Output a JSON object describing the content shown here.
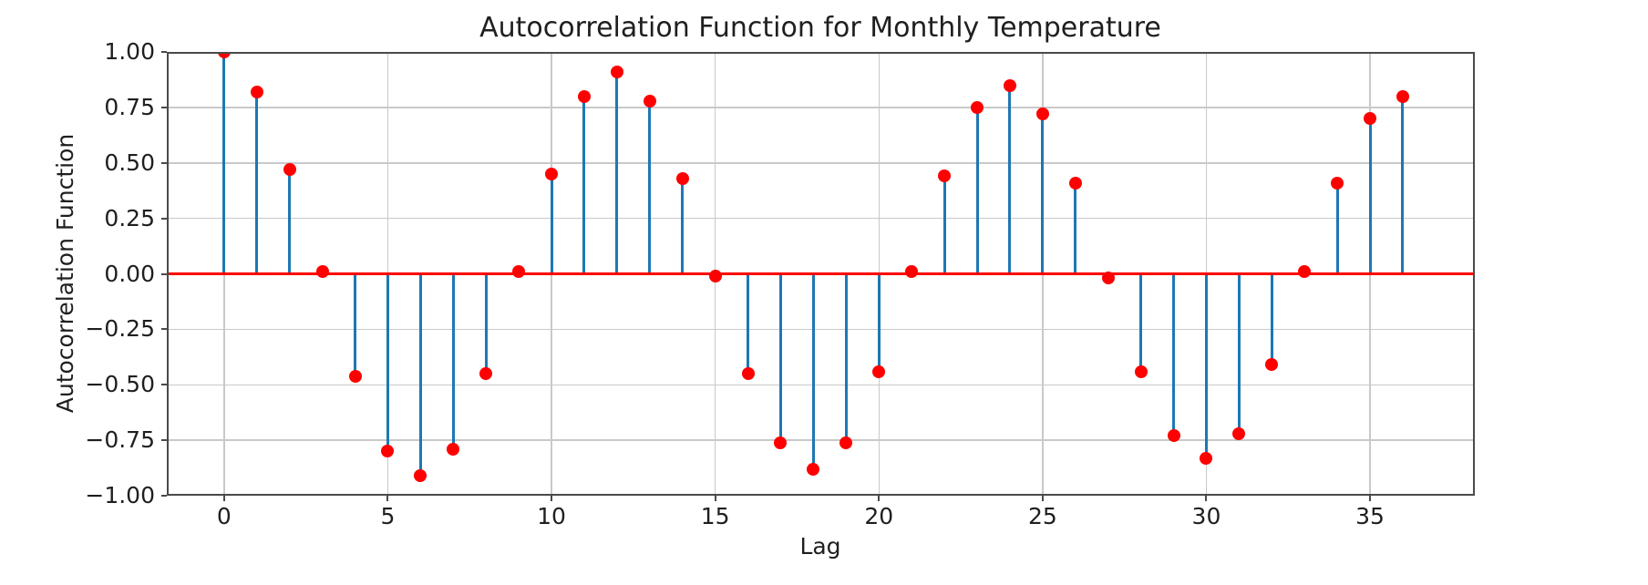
{
  "chart_data": {
    "type": "stem",
    "title": "Autocorrelation Function for Monthly Temperature",
    "xlabel": "Lag",
    "ylabel": "Autocorrelation Function",
    "x": [
      0,
      1,
      2,
      3,
      4,
      5,
      6,
      7,
      8,
      9,
      10,
      11,
      12,
      13,
      14,
      15,
      16,
      17,
      18,
      19,
      20,
      21,
      22,
      23,
      24,
      25,
      26,
      27,
      28,
      29,
      30,
      31,
      32,
      33,
      34,
      35,
      36
    ],
    "values": [
      1.0,
      0.82,
      0.47,
      0.01,
      -0.46,
      -0.8,
      -0.91,
      -0.79,
      -0.45,
      0.01,
      0.45,
      0.8,
      0.91,
      0.78,
      0.43,
      -0.01,
      -0.45,
      -0.76,
      -0.88,
      -0.76,
      -0.44,
      0.01,
      0.44,
      0.75,
      0.85,
      0.72,
      0.41,
      -0.02,
      -0.44,
      -0.73,
      -0.83,
      -0.72,
      -0.41,
      0.01,
      0.41,
      0.7,
      0.8
    ],
    "xticks": [
      0,
      5,
      10,
      15,
      20,
      25,
      30,
      35
    ],
    "x_tick_labels": [
      "0",
      "5",
      "10",
      "15",
      "20",
      "25",
      "30",
      "35"
    ],
    "yticks": [
      1.0,
      0.75,
      0.5,
      0.25,
      0.0,
      -0.25,
      -0.5,
      -0.75,
      -1.0
    ],
    "y_tick_labels": [
      "1.00",
      "0.75",
      "0.50",
      "0.25",
      "0.00",
      "−0.25",
      "−0.50",
      "−0.75",
      "−1.00"
    ],
    "xlim": [
      -1.75,
      38.2
    ],
    "ylim": [
      -1.0,
      1.0
    ],
    "grid": true,
    "legend": "none",
    "colors": {
      "stem": "#1f77b4",
      "marker": "#ff0000",
      "baseline": "#ff0000",
      "grid": "#c9c9c9",
      "spine": "#4a4a4a",
      "text": "#1f1f1f"
    }
  }
}
